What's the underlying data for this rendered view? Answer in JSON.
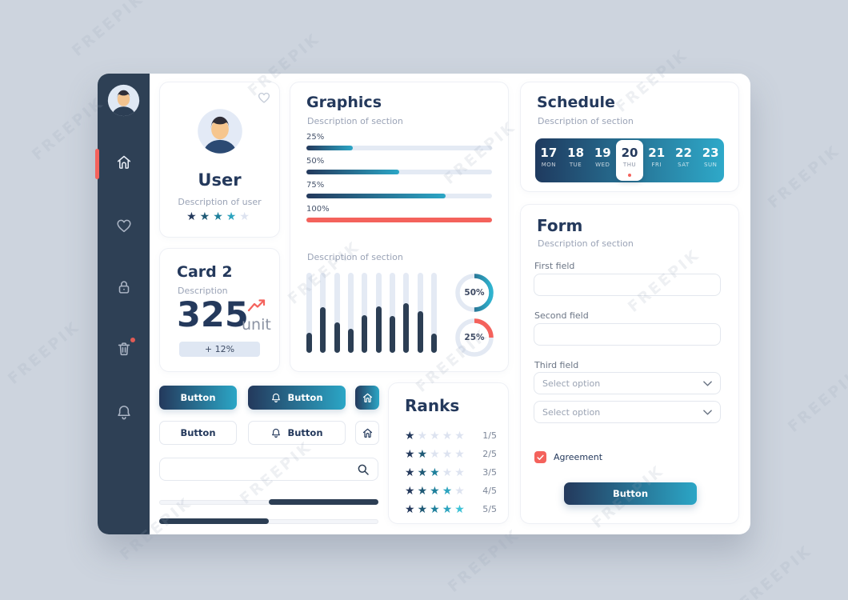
{
  "watermark": "FREEPIK",
  "colors": {
    "navy": "#24395c",
    "sidebar": "#2e4055",
    "teal": "#2ba6c6",
    "red": "#f4625c",
    "track": "#e4eaf4",
    "bar_fill": "#2c3e54",
    "star_empty": "#dde3f0",
    "star_palette": [
      "#24395c",
      "#205a76",
      "#1d7f9b",
      "#2da4bf",
      "#3cc2d6"
    ],
    "gradient": [
      "#24395c",
      "#2ba6c6"
    ],
    "calendar_gradient": [
      "#1f3a5f",
      "#2ea9c9"
    ]
  },
  "sidebar": {
    "icons": [
      "user-avatar",
      "home",
      "heart",
      "lock",
      "trash",
      "bell"
    ],
    "active": "home",
    "trash_has_dot": true
  },
  "user_card": {
    "name": "User",
    "description": "Description of user",
    "rating": 4,
    "max_rating": 5,
    "favorite_icon": "heart-outline"
  },
  "card2": {
    "title": "Card 2",
    "description": "Description",
    "value": "325",
    "unit": "unit",
    "badge": "+ 12%",
    "trend_icon": "trend-up"
  },
  "graphics": {
    "title": "Graphics",
    "description": "Description of section",
    "progress_bars": [
      {
        "label": "25%",
        "value": 25,
        "style": "gradient"
      },
      {
        "label": "50%",
        "value": 50,
        "style": "gradient"
      },
      {
        "label": "75%",
        "value": 75,
        "style": "gradient"
      },
      {
        "label": "100%",
        "value": 100,
        "style": "red"
      }
    ],
    "section2_description": "Description of section",
    "chart_data": {
      "type": "bar",
      "values": [
        25,
        57,
        38,
        30,
        47,
        58,
        46,
        62,
        52,
        24
      ],
      "ymax": 100
    },
    "donuts": [
      {
        "label": "50%",
        "value": 50,
        "style": "gradient"
      },
      {
        "label": "25%",
        "value": 25,
        "style": "red"
      }
    ]
  },
  "schedule": {
    "title": "Schedule",
    "description": "Description of section",
    "days": [
      {
        "num": "17",
        "name": "MON"
      },
      {
        "num": "18",
        "name": "TUE"
      },
      {
        "num": "19",
        "name": "WED"
      },
      {
        "num": "20",
        "name": "THU"
      },
      {
        "num": "21",
        "name": "FRI"
      },
      {
        "num": "22",
        "name": "SAT"
      },
      {
        "num": "23",
        "name": "SUN"
      }
    ],
    "selected_index": 3
  },
  "form": {
    "title": "Form",
    "description": "Description of section",
    "fields": [
      {
        "label": "First field",
        "type": "text",
        "value": ""
      },
      {
        "label": "Second field",
        "type": "text",
        "value": ""
      },
      {
        "label": "Third field",
        "type": "select",
        "placeholder": "Select option"
      }
    ],
    "extra_select_placeholder": "Select option",
    "agreement_label": "Agreement",
    "agreement_checked": true,
    "submit_label": "Button"
  },
  "buttons": {
    "primary": [
      {
        "label": "Button"
      },
      {
        "label": "Button",
        "icon": "bell"
      },
      {
        "icon": "home"
      }
    ],
    "secondary": [
      {
        "label": "Button"
      },
      {
        "label": "Button",
        "icon": "bell"
      },
      {
        "icon": "home"
      }
    ]
  },
  "search": {
    "placeholder": "",
    "icon": "magnifier"
  },
  "sliders": [
    {
      "value": 50,
      "filled": "right"
    },
    {
      "value": 50,
      "filled": "left"
    }
  ],
  "ranks": {
    "title": "Ranks",
    "rows": [
      {
        "stars": 1,
        "label": "1/5"
      },
      {
        "stars": 2,
        "label": "2/5"
      },
      {
        "stars": 3,
        "label": "3/5"
      },
      {
        "stars": 4,
        "label": "4/5"
      },
      {
        "stars": 5,
        "label": "5/5"
      }
    ]
  }
}
